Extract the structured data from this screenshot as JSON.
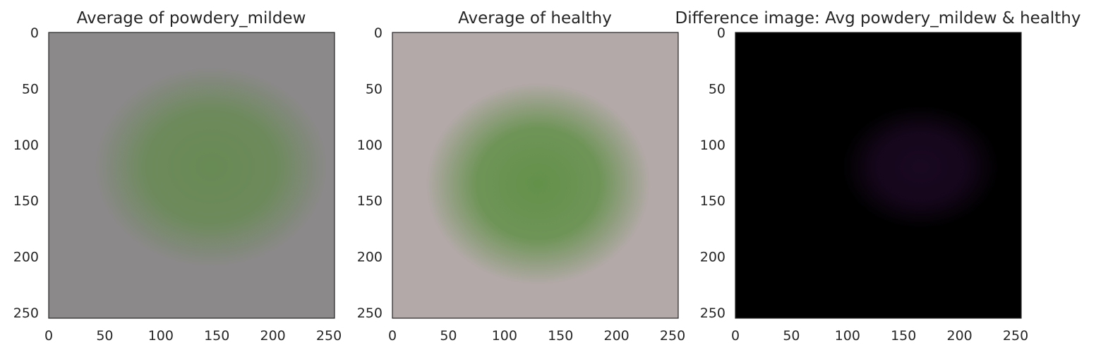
{
  "chart_data": [
    {
      "type": "heatmap",
      "title": "Average of powdery_mildew",
      "xlim": [
        0,
        255
      ],
      "ylim": [
        255,
        0
      ],
      "xticks": [
        0,
        50,
        100,
        150,
        200,
        250
      ],
      "yticks": [
        0,
        50,
        100,
        150,
        200,
        250
      ],
      "grid": false,
      "background_color": "#8c898b",
      "blob_color": "#5f8a46",
      "blob": {
        "cx": 145,
        "cy": 120,
        "rx": 105,
        "ry": 90,
        "strength": 0.8
      }
    },
    {
      "type": "heatmap",
      "title": "Average of healthy",
      "xlim": [
        0,
        255
      ],
      "ylim": [
        255,
        0
      ],
      "xticks": [
        0,
        50,
        100,
        150,
        200,
        250
      ],
      "yticks": [
        0,
        50,
        100,
        150,
        200,
        250
      ],
      "grid": false,
      "background_color": "#b3a9a8",
      "blob_color": "#5a8e3f",
      "blob": {
        "cx": 130,
        "cy": 135,
        "rx": 100,
        "ry": 90,
        "strength": 0.9
      }
    },
    {
      "type": "heatmap",
      "title": "Difference image: Avg powdery_mildew & healthy",
      "xlim": [
        0,
        255
      ],
      "ylim": [
        255,
        0
      ],
      "xticks": [
        0,
        50,
        100,
        150,
        200,
        250
      ],
      "yticks": [
        0,
        50,
        100,
        150,
        200,
        250
      ],
      "grid": false,
      "background_color": "#000000",
      "blob_color": "#2a0d36",
      "blob": {
        "cx": 165,
        "cy": 120,
        "rx": 70,
        "ry": 55,
        "strength": 0.6
      }
    }
  ]
}
